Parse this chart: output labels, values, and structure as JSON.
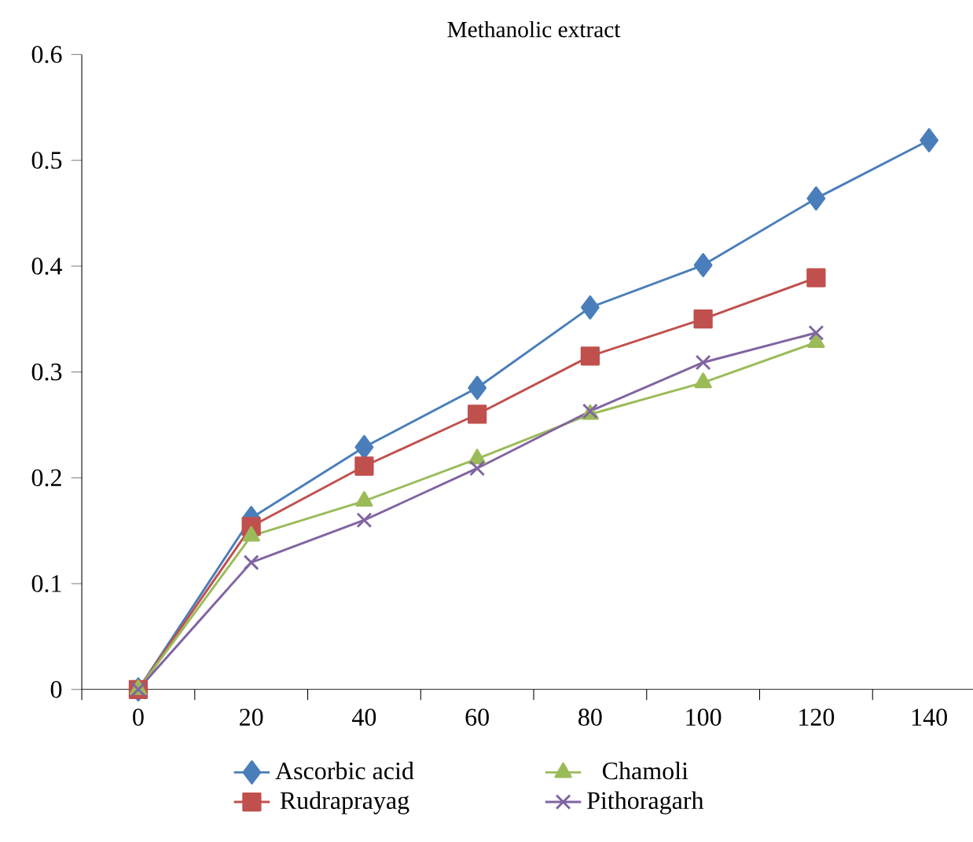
{
  "chart_data": {
    "type": "line",
    "title": "Methanolic extract",
    "categories": [
      "0",
      "20",
      "40",
      "60",
      "80",
      "100",
      "120",
      "140"
    ],
    "series": [
      {
        "name": "Ascorbic acid",
        "color": "#4a7ebb",
        "marker": "diamond",
        "values": [
          0,
          0.162,
          0.229,
          0.285,
          0.361,
          0.401,
          0.464,
          0.519
        ]
      },
      {
        "name": "Rudraprayag",
        "color": "#c0504d",
        "marker": "square",
        "values": [
          0,
          0.154,
          0.211,
          0.26,
          0.315,
          0.35,
          0.389,
          null
        ]
      },
      {
        "name": "Chamoli",
        "color": "#9bbb59",
        "marker": "triangle",
        "values": [
          0,
          0.145,
          0.178,
          0.218,
          0.26,
          0.29,
          0.328,
          null
        ]
      },
      {
        "name": "Pithoragarh",
        "color": "#8064a2",
        "marker": "cross",
        "values": [
          0,
          0.12,
          0.16,
          0.209,
          0.263,
          0.309,
          0.337,
          null
        ]
      }
    ],
    "ylim": [
      0,
      0.6
    ],
    "yticks": [
      0,
      0.1,
      0.2,
      0.3,
      0.4,
      0.5,
      0.6
    ],
    "grid": false,
    "legend": "bottom",
    "line_style": "solid"
  }
}
